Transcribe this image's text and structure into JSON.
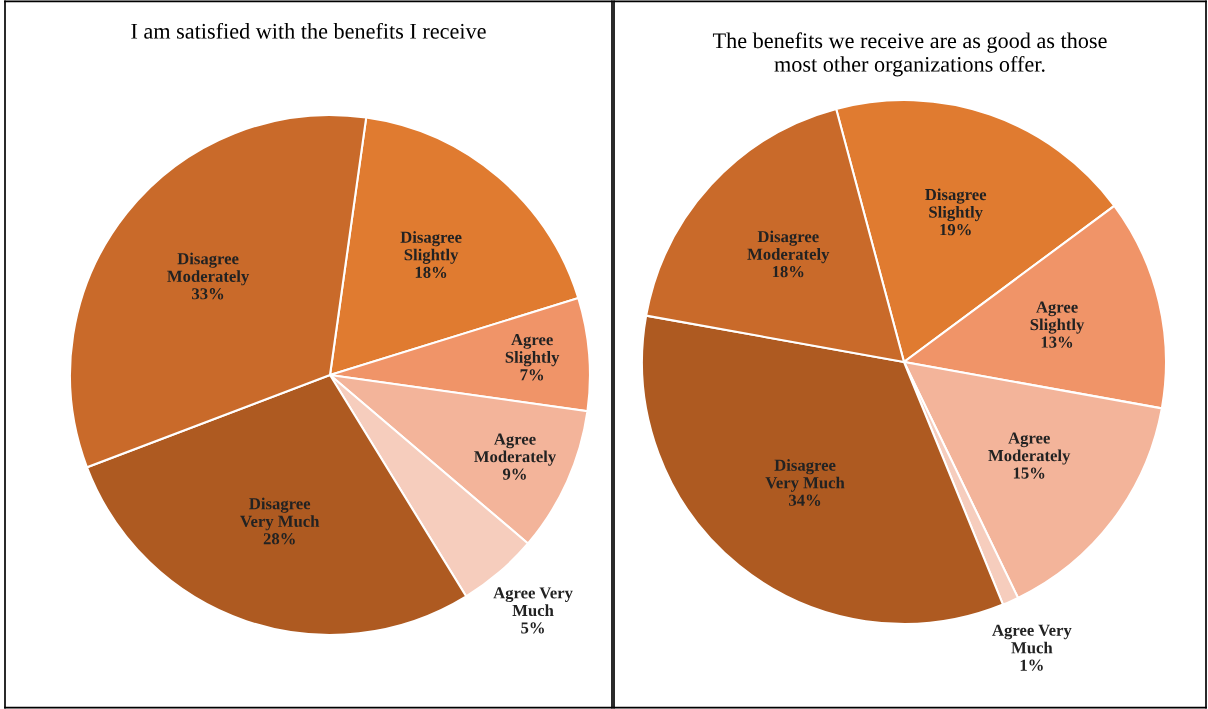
{
  "chart_data": [
    {
      "type": "pie",
      "title": "I am satisfied with the benefits I receive",
      "categories": [
        "Disagree\nSlightly",
        "Agree\nSlightly",
        "Agree\nModerately",
        "Agree Very\nMuch",
        "Disagree\nVery Much",
        "Disagree\nModerately"
      ],
      "values": [
        18,
        7,
        9,
        5,
        28,
        33
      ],
      "value_labels": [
        "18%",
        "7%",
        "9%",
        "5%",
        "28%",
        "33%"
      ],
      "colors": [
        "#e07b30",
        "#f09468",
        "#f3b49a",
        "#f6cdbd",
        "#ae5a21",
        "#c96a2a"
      ]
    },
    {
      "type": "pie",
      "title": "The benefits we receive are as good as those\nmost other organizations offer.",
      "categories": [
        "Disagree\nSlightly",
        "Agree\nSlightly",
        "Agree\nModerately",
        "Agree Very\nMuch",
        "Disagree\nVery Much",
        "Disagree\nModerately"
      ],
      "values": [
        19,
        13,
        15,
        1,
        34,
        18
      ],
      "value_labels": [
        "19%",
        "13%",
        "15%",
        "1%",
        "34%",
        "18%"
      ],
      "colors": [
        "#e07b30",
        "#f09468",
        "#f3b49a",
        "#f6cdbd",
        "#ae5a21",
        "#c96a2a"
      ]
    }
  ]
}
